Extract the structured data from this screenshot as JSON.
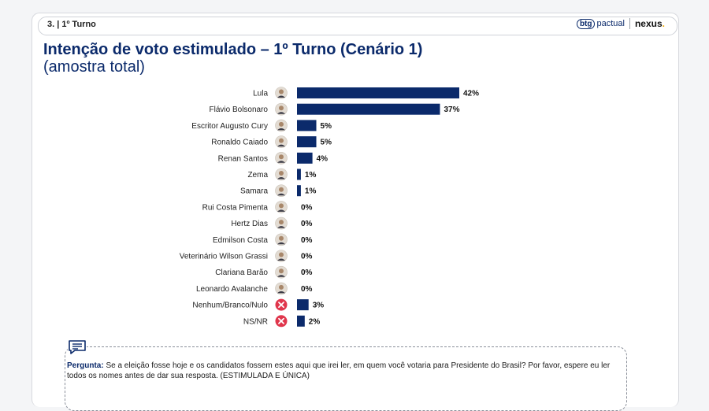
{
  "header": {
    "section": "3. | 1º Turno",
    "logo_btg_mark": "btg",
    "logo_btg_text": "pactual",
    "logo_nexus": "nexus",
    "logo_nexus_dot": "."
  },
  "title": "Intenção de voto estimulado – 1º Turno (Cenário 1)",
  "subtitle": "(amostra total)",
  "chart_data": {
    "type": "bar",
    "orientation": "horizontal",
    "categories": [
      "Lula",
      "Flávio Bolsonaro",
      "Escritor Augusto Cury",
      "Ronaldo Caiado",
      "Renan Santos",
      "Zema",
      "Samara",
      "Rui Costa Pimenta",
      "Hertz Dias",
      "Edmilson Costa",
      "Veterinário Wilson Grassi",
      "Clariana Barão",
      "Leonardo Avalanche",
      "Nenhum/Branco/Nulo",
      "NS/NR"
    ],
    "values": [
      42,
      37,
      5,
      5,
      4,
      1,
      1,
      0,
      0,
      0,
      0,
      0,
      0,
      3,
      2
    ],
    "value_labels": [
      "42%",
      "37%",
      "5%",
      "5%",
      "4%",
      "1%",
      "1%",
      "0%",
      "0%",
      "0%",
      "0%",
      "0%",
      "0%",
      "3%",
      "2%"
    ],
    "icon_types": [
      "avatar",
      "avatar",
      "avatar",
      "avatar",
      "avatar",
      "avatar",
      "avatar",
      "avatar",
      "avatar",
      "avatar",
      "avatar",
      "avatar",
      "avatar",
      "x",
      "x"
    ],
    "bar_color": "#0b2a6b",
    "x_range": [
      0,
      42
    ]
  },
  "question": {
    "label": "Pergunta:",
    "text": "Se a eleição fosse hoje e os candidatos fossem estes aqui que irei ler, em quem você votaria para Presidente do Brasil? Por favor, espere eu ler todos os nomes antes de dar sua resposta. (ESTIMULADA E ÚNICA)"
  },
  "colors": {
    "primary": "#0b2a6b",
    "x_icon": "#e0364c"
  }
}
